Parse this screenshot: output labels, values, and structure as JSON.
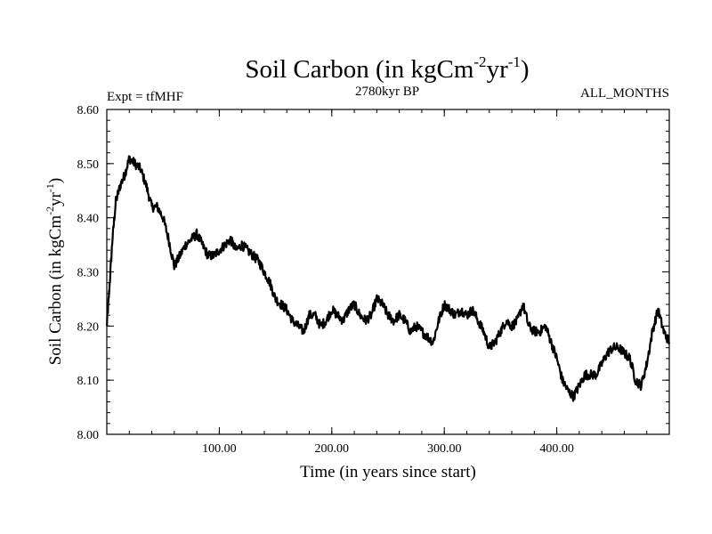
{
  "chart_data": {
    "type": "line",
    "title": "Soil Carbon (in kgCm",
    "title_sup1": "-2",
    "title_mid": "yr",
    "title_sup2": "-1",
    "title_end": ")",
    "subtitle_left": "Expt = tfMHF",
    "subtitle_center": "2780kyr BP",
    "subtitle_right": "ALL_MONTHS",
    "xlabel": "Time (in years since start)",
    "ylabel": "Soil Carbon (in kgCm",
    "ylabel_sup1": "-2",
    "ylabel_mid": "yr",
    "ylabel_sup2": "-1",
    "ylabel_end": ")",
    "xlim": [
      0,
      500
    ],
    "ylim": [
      8.0,
      8.6
    ],
    "xticks": [
      100,
      200,
      300,
      400
    ],
    "xtick_labels": [
      "100.00",
      "200.00",
      "300.00",
      "400.00"
    ],
    "yticks": [
      8.0,
      8.1,
      8.2,
      8.3,
      8.4,
      8.5,
      8.6
    ],
    "ytick_labels": [
      "8.00",
      "8.10",
      "8.20",
      "8.30",
      "8.40",
      "8.50",
      "8.60"
    ],
    "grid": false,
    "series": [
      {
        "name": "Soil Carbon",
        "color": "#000000",
        "x": [
          0,
          2,
          5,
          8,
          12,
          16,
          20,
          25,
          30,
          35,
          40,
          45,
          50,
          55,
          60,
          65,
          70,
          75,
          80,
          85,
          90,
          95,
          100,
          105,
          110,
          115,
          120,
          125,
          130,
          135,
          140,
          145,
          150,
          155,
          160,
          165,
          170,
          175,
          180,
          185,
          190,
          195,
          200,
          205,
          210,
          215,
          220,
          225,
          230,
          235,
          240,
          245,
          250,
          255,
          260,
          265,
          270,
          275,
          280,
          285,
          290,
          295,
          300,
          305,
          310,
          315,
          320,
          325,
          330,
          335,
          340,
          345,
          350,
          355,
          360,
          365,
          370,
          375,
          380,
          385,
          390,
          395,
          400,
          405,
          410,
          415,
          420,
          425,
          430,
          435,
          440,
          445,
          450,
          455,
          460,
          465,
          470,
          475,
          480,
          485,
          490,
          495,
          500
        ],
        "values": [
          8.2,
          8.26,
          8.36,
          8.43,
          8.46,
          8.48,
          8.51,
          8.5,
          8.49,
          8.46,
          8.42,
          8.42,
          8.4,
          8.36,
          8.31,
          8.33,
          8.35,
          8.36,
          8.37,
          8.35,
          8.33,
          8.33,
          8.34,
          8.35,
          8.36,
          8.34,
          8.35,
          8.34,
          8.33,
          8.32,
          8.3,
          8.28,
          8.25,
          8.24,
          8.23,
          8.21,
          8.2,
          8.19,
          8.22,
          8.22,
          8.2,
          8.21,
          8.23,
          8.22,
          8.21,
          8.23,
          8.24,
          8.22,
          8.21,
          8.22,
          8.25,
          8.24,
          8.22,
          8.21,
          8.22,
          8.21,
          8.19,
          8.2,
          8.19,
          8.18,
          8.17,
          8.21,
          8.24,
          8.23,
          8.22,
          8.23,
          8.22,
          8.23,
          8.21,
          8.19,
          8.16,
          8.17,
          8.19,
          8.21,
          8.2,
          8.21,
          8.24,
          8.2,
          8.19,
          8.19,
          8.2,
          8.17,
          8.14,
          8.1,
          8.08,
          8.07,
          8.09,
          8.11,
          8.11,
          8.11,
          8.13,
          8.15,
          8.16,
          8.16,
          8.15,
          8.14,
          8.1,
          8.09,
          8.13,
          8.19,
          8.23,
          8.19,
          8.17
        ]
      }
    ]
  }
}
